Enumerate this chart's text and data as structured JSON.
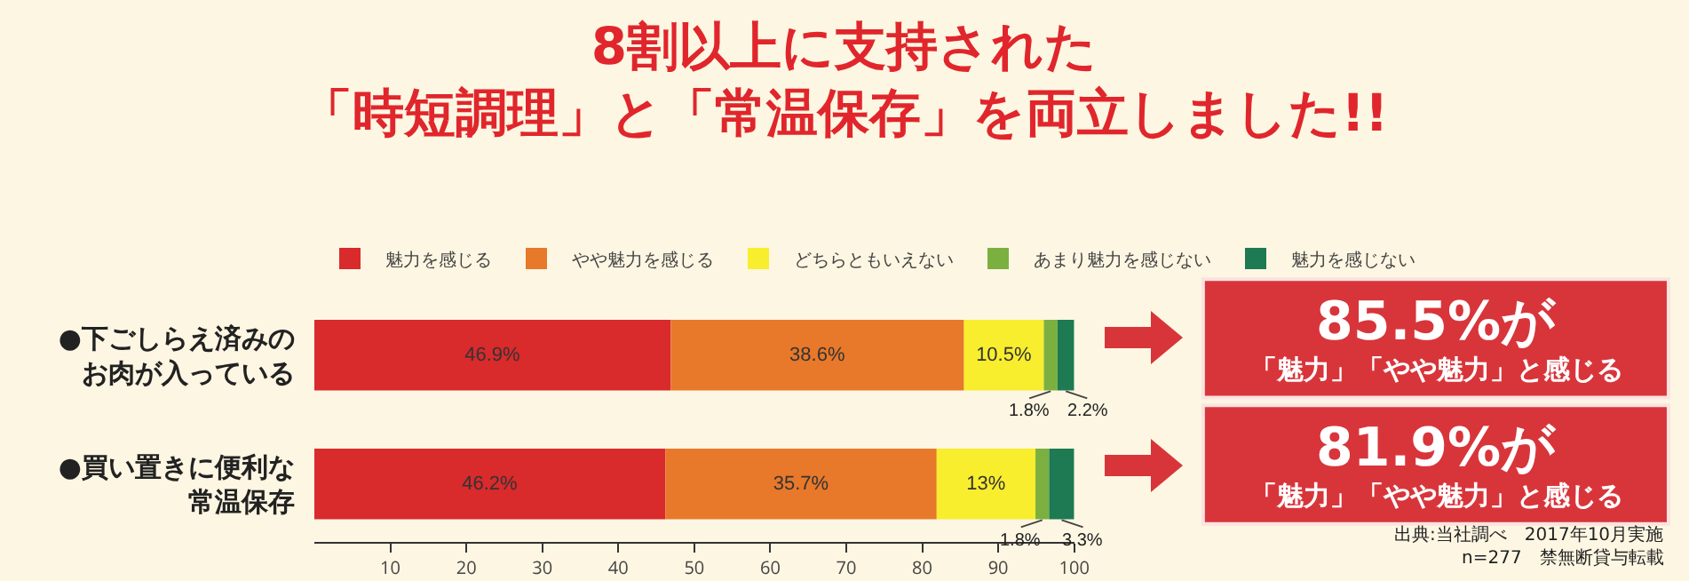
{
  "chart_data": {
    "type": "bar",
    "orientation": "horizontal",
    "stacked": true,
    "title": "8割以上に支持された",
    "subtitle": "「時短調理」と「常温保存」を両立しました!!",
    "categories": [
      "●下ごしらえ済みのお肉が入っている",
      "●買い置きに便利な常温保存"
    ],
    "series": [
      {
        "name": "魅力を感じる",
        "color": "#d92a2c",
        "values": [
          46.9,
          46.2
        ],
        "value_labels": [
          "46.9%",
          "46.2%"
        ]
      },
      {
        "name": "やや魅力を感じる",
        "color": "#e8782a",
        "values": [
          38.6,
          35.7
        ],
        "value_labels": [
          "38.6%",
          "35.7%"
        ]
      },
      {
        "name": "どちらともいえない",
        "color": "#f8ee2e",
        "values": [
          10.5,
          13
        ],
        "value_labels": [
          "10.5%",
          "13%"
        ]
      },
      {
        "name": "あまり魅力を感じない",
        "color": "#7bb041",
        "values": [
          1.8,
          1.8
        ],
        "value_labels": [
          "1.8%",
          "1.8%"
        ]
      },
      {
        "name": "魅力を感じない",
        "color": "#1d7a52",
        "values": [
          2.2,
          3.3
        ],
        "value_labels": [
          "2.2%",
          "3.3%"
        ]
      }
    ],
    "xlim": [
      0,
      100
    ],
    "xticks": [
      10,
      20,
      30,
      40,
      50,
      60,
      70,
      80,
      90,
      100
    ],
    "grid": false,
    "legend": "top",
    "annotations": [
      "85.5%が",
      "「魅力」「やや魅力」と感じる",
      "81.9%が",
      "「魅力」「やや魅力」と感じる",
      "出典:当社調べ　2017年10月実施",
      "n=277　禁無断貸与転載"
    ]
  }
}
